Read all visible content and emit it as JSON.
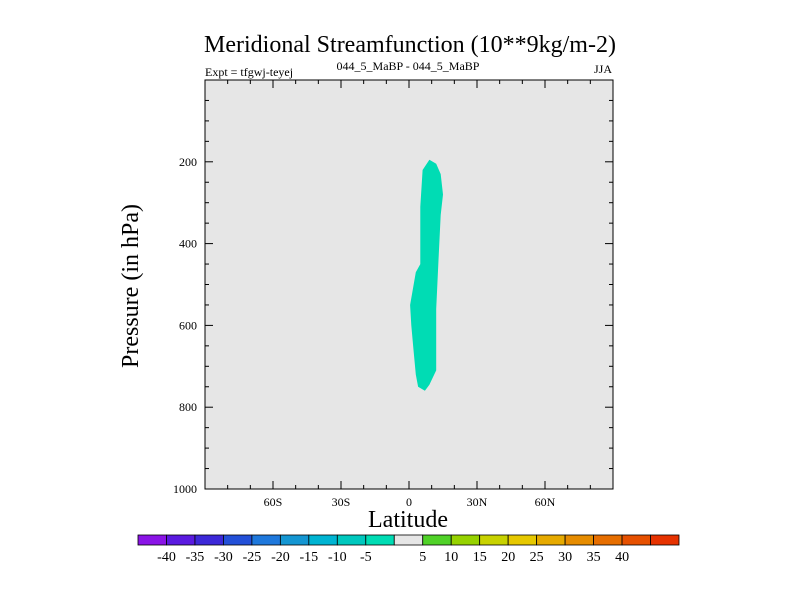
{
  "chart_data": {
    "type": "contour",
    "title": "Meridional Streamfunction (10**9kg/m-2)",
    "subtitle_left": "Expt = tfgwj-teyej",
    "subtitle_center": "044_5_MaBP - 044_5_MaBP",
    "subtitle_right": "JJA",
    "xlabel": "Latitude",
    "ylabel": "Pressure (in hPa)",
    "xlim": [
      -90,
      90
    ],
    "ylim": [
      1000,
      0
    ],
    "x_ticks": [
      {
        "value": -60,
        "label": "60S"
      },
      {
        "value": -30,
        "label": "30S"
      },
      {
        "value": 0,
        "label": "0"
      },
      {
        "value": 30,
        "label": "30N"
      },
      {
        "value": 60,
        "label": "60N"
      }
    ],
    "y_ticks": [
      {
        "value": 200,
        "label": "200"
      },
      {
        "value": 400,
        "label": "400"
      },
      {
        "value": 600,
        "label": "600"
      },
      {
        "value": 800,
        "label": "800"
      },
      {
        "value": 1000,
        "label": "1000"
      }
    ],
    "background_color": "#e6e6e6",
    "contours": [
      {
        "name": "band -10 to -5",
        "color": "#00dcb4",
        "polygon": [
          [
            9,
            195
          ],
          [
            12,
            205
          ],
          [
            14,
            230
          ],
          [
            15,
            280
          ],
          [
            14,
            330
          ],
          [
            13,
            440
          ],
          [
            12,
            560
          ],
          [
            12,
            660
          ],
          [
            12,
            710
          ],
          [
            9,
            745
          ],
          [
            7,
            760
          ],
          [
            4,
            750
          ],
          [
            3,
            720
          ],
          [
            2,
            660
          ],
          [
            1,
            600
          ],
          [
            0.5,
            550
          ],
          [
            3,
            470
          ],
          [
            5,
            450
          ],
          [
            5,
            420
          ],
          [
            5,
            310
          ],
          [
            6,
            220
          ]
        ]
      }
    ],
    "colorbar": {
      "labels": [
        "-40",
        "-35",
        "-30",
        "-25",
        "-20",
        "-15",
        "-10",
        "-5",
        "5",
        "10",
        "15",
        "20",
        "25",
        "30",
        "35",
        "40"
      ],
      "colors": [
        "#8a14e6",
        "#5a1ae0",
        "#3c28d8",
        "#2350d8",
        "#1e78dc",
        "#1496d2",
        "#00b4d2",
        "#00c8be",
        "#00dcb4",
        "#e6e6e6",
        "#50d228",
        "#96d200",
        "#c8d200",
        "#e6c800",
        "#e6aa00",
        "#e68c00",
        "#e66e00",
        "#e65000",
        "#e63200"
      ]
    }
  }
}
